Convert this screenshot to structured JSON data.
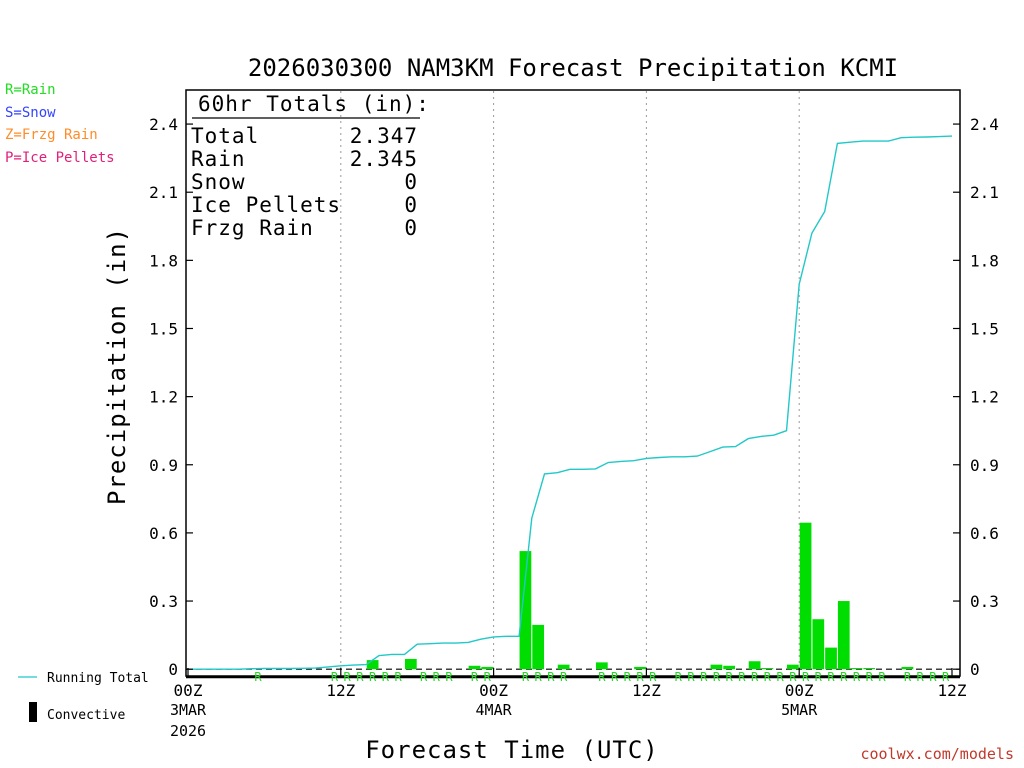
{
  "colors": {
    "rain": "#22dd22",
    "snow": "#3344ff",
    "frzg_rain": "#ff8c28",
    "ice_pellets": "#e0207a",
    "running_total": "#22c8c8",
    "bar": "#00dd00",
    "site": "#c0392b"
  },
  "legend_keys": {
    "rain": "R=Rain",
    "snow": "S=Snow",
    "frzg_rain": "Z=Frzg Rain",
    "ice_pellets": "P=Ice Pellets"
  },
  "bottom_legend": {
    "running_total": "Running Total",
    "convective": "Convective"
  },
  "site_url": "coolwx.com/models",
  "chart_data": {
    "type": "bar",
    "title": "2026030300 NAM3KM Forecast Precipitation KCMI",
    "xlabel": "Forecast Time (UTC)",
    "ylabel": "Precipitation (in)",
    "xlim": [
      0,
      60
    ],
    "ylim": [
      -0.03,
      2.55
    ],
    "yticks": [
      0,
      0.3,
      0.6,
      0.9,
      1.2,
      1.5,
      1.8,
      2.1,
      2.4
    ],
    "ytick_labels": [
      "0",
      "0.3",
      "0.6",
      "0.9",
      "1.2",
      "1.5",
      "1.8",
      "2.1",
      "2.4"
    ],
    "xticks": [
      {
        "hour": 0,
        "label": "00Z",
        "sub1": "3MAR",
        "sub2": "2026"
      },
      {
        "hour": 12,
        "label": "12Z",
        "sub1": "",
        "sub2": ""
      },
      {
        "hour": 24,
        "label": "00Z",
        "sub1": "4MAR",
        "sub2": ""
      },
      {
        "hour": 36,
        "label": "12Z",
        "sub1": "",
        "sub2": ""
      },
      {
        "hour": 48,
        "label": "00Z",
        "sub1": "5MAR",
        "sub2": ""
      },
      {
        "hour": 60,
        "label": "12Z",
        "sub1": "",
        "sub2": ""
      }
    ],
    "totals": {
      "header": "60hr Totals (in):",
      "rows": [
        {
          "label": "Total",
          "value": "2.347"
        },
        {
          "label": "Rain",
          "value": "2.345"
        },
        {
          "label": "Snow",
          "value": "0"
        },
        {
          "label": "Ice Pellets",
          "value": "0"
        },
        {
          "label": "Frzg Rain",
          "value": "0"
        }
      ]
    },
    "hourly_precip": [
      {
        "hour": 15,
        "value": 0.04
      },
      {
        "hour": 18,
        "value": 0.045
      },
      {
        "hour": 23,
        "value": 0.015
      },
      {
        "hour": 24,
        "value": 0.01
      },
      {
        "hour": 27,
        "value": 0.52
      },
      {
        "hour": 28,
        "value": 0.195
      },
      {
        "hour": 30,
        "value": 0.02
      },
      {
        "hour": 33,
        "value": 0.03
      },
      {
        "hour": 36,
        "value": 0.01
      },
      {
        "hour": 42,
        "value": 0.02
      },
      {
        "hour": 43,
        "value": 0.015
      },
      {
        "hour": 45,
        "value": 0.035
      },
      {
        "hour": 46,
        "value": 0.005
      },
      {
        "hour": 48,
        "value": 0.02
      },
      {
        "hour": 49,
        "value": 0.645
      },
      {
        "hour": 50,
        "value": 0.22
      },
      {
        "hour": 51,
        "value": 0.095
      },
      {
        "hour": 52,
        "value": 0.3
      },
      {
        "hour": 53,
        "value": 0.005
      },
      {
        "hour": 54,
        "value": 0.005
      },
      {
        "hour": 57,
        "value": 0.01
      }
    ],
    "running_total": [
      [
        0,
        0
      ],
      [
        3,
        0
      ],
      [
        4,
        0
      ],
      [
        5,
        0.002
      ],
      [
        6,
        0.003
      ],
      [
        7,
        0.003
      ],
      [
        8,
        0.003
      ],
      [
        9,
        0.004
      ],
      [
        10,
        0.005
      ],
      [
        11,
        0.01
      ],
      [
        12,
        0.015
      ],
      [
        13,
        0.018
      ],
      [
        14,
        0.02
      ],
      [
        15,
        0.06
      ],
      [
        16,
        0.065
      ],
      [
        17,
        0.065
      ],
      [
        18,
        0.11
      ],
      [
        19,
        0.112
      ],
      [
        20,
        0.115
      ],
      [
        21,
        0.115
      ],
      [
        22,
        0.118
      ],
      [
        23,
        0.132
      ],
      [
        24,
        0.142
      ],
      [
        25,
        0.145
      ],
      [
        26,
        0.145
      ],
      [
        27,
        0.665
      ],
      [
        28,
        0.86
      ],
      [
        29,
        0.865
      ],
      [
        30,
        0.88
      ],
      [
        31,
        0.88
      ],
      [
        32,
        0.882
      ],
      [
        33,
        0.91
      ],
      [
        34,
        0.915
      ],
      [
        35,
        0.918
      ],
      [
        36,
        0.928
      ],
      [
        37,
        0.932
      ],
      [
        38,
        0.935
      ],
      [
        39,
        0.935
      ],
      [
        40,
        0.938
      ],
      [
        41,
        0.958
      ],
      [
        42,
        0.978
      ],
      [
        43,
        0.98
      ],
      [
        44,
        1.015
      ],
      [
        45,
        1.025
      ],
      [
        46,
        1.03
      ],
      [
        47,
        1.05
      ],
      [
        48,
        1.695
      ],
      [
        49,
        1.92
      ],
      [
        50,
        2.015
      ],
      [
        51,
        2.315
      ],
      [
        52,
        2.32
      ],
      [
        53,
        2.325
      ],
      [
        54,
        2.325
      ],
      [
        55,
        2.325
      ],
      [
        56,
        2.34
      ],
      [
        57,
        2.342
      ],
      [
        58,
        2.343
      ],
      [
        59,
        2.345
      ],
      [
        60,
        2.347
      ]
    ],
    "ptype_markers": {
      "letter": "R",
      "hours": [
        6,
        12,
        13,
        14,
        15,
        16,
        17,
        19,
        20,
        21,
        23,
        24,
        27,
        28,
        29,
        30,
        33,
        34,
        35,
        36,
        37,
        39,
        40,
        41,
        42,
        43,
        44,
        45,
        46,
        47,
        48,
        49,
        50,
        51,
        52,
        53,
        54,
        55,
        57,
        58,
        59,
        60
      ]
    }
  }
}
